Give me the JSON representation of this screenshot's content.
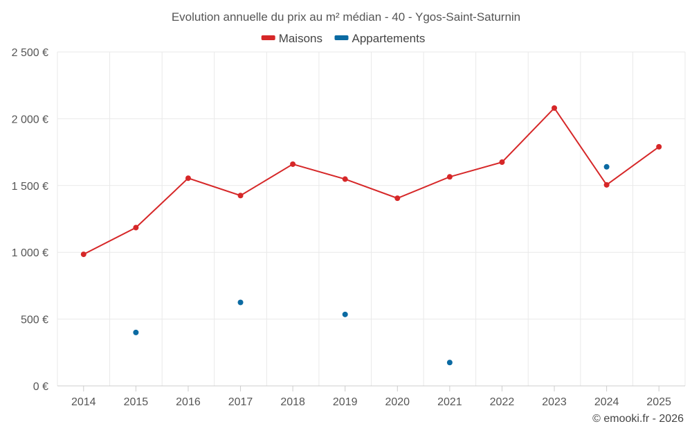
{
  "chart_data": {
    "type": "line",
    "title": "Evolution annuelle du prix au m² médian - 40 - Ygos-Saint-Saturnin",
    "categories": [
      "2014",
      "2015",
      "2016",
      "2017",
      "2018",
      "2019",
      "2020",
      "2021",
      "2022",
      "2023",
      "2024",
      "2025"
    ],
    "series": [
      {
        "name": "Maisons",
        "color": "#d62728",
        "draw_line": true,
        "values": [
          985,
          1185,
          1555,
          1425,
          1660,
          1548,
          1405,
          1565,
          1675,
          2080,
          1505,
          1790
        ]
      },
      {
        "name": "Appartements",
        "color": "#0b6aa2",
        "draw_line": false,
        "values": [
          null,
          400,
          null,
          625,
          null,
          535,
          null,
          175,
          null,
          null,
          1640,
          null
        ]
      }
    ],
    "y_ticks": [
      0,
      500,
      1000,
      1500,
      2000,
      2500
    ],
    "y_tick_labels": [
      "0 €",
      "500 €",
      "1 000 €",
      "1 500 €",
      "2 000 €",
      "2 500 €"
    ],
    "ylim": [
      0,
      2500
    ],
    "grid": true,
    "legend_position": "top-center",
    "xlabel": "",
    "ylabel": ""
  },
  "credit": "© emooki.fr - 2026"
}
